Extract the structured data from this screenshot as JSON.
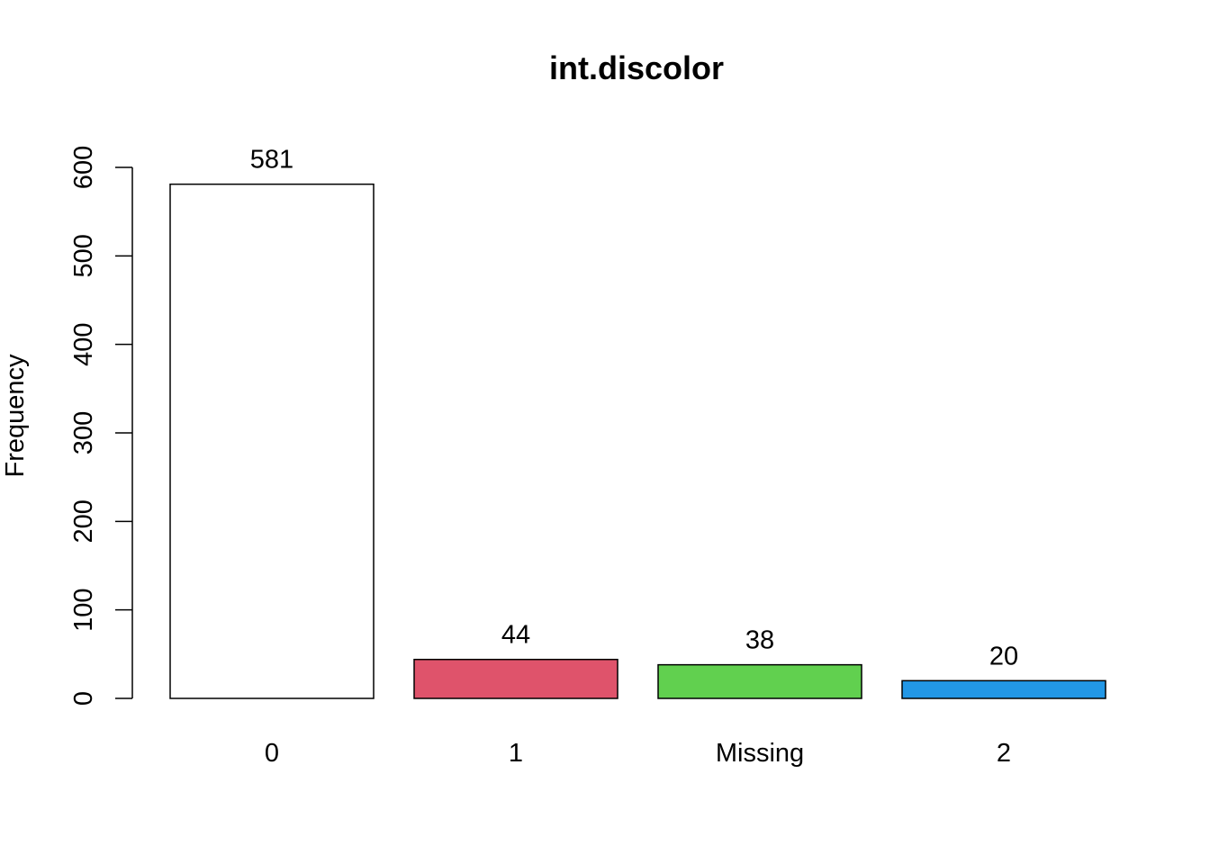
{
  "chart_data": {
    "type": "bar",
    "title": "int.discolor",
    "xlabel": "",
    "ylabel": "Frequency",
    "categories": [
      "0",
      "1",
      "Missing",
      "2"
    ],
    "values": [
      581,
      44,
      38,
      20
    ],
    "bar_labels": [
      "581",
      "44",
      "38",
      "20"
    ],
    "colors": [
      "#FFFFFF",
      "#DF536B",
      "#61D04F",
      "#2297E6"
    ],
    "ylim": [
      0,
      600
    ],
    "yticks": [
      0,
      100,
      200,
      300,
      400,
      500,
      600
    ],
    "ytick_labels": [
      "0",
      "100",
      "200",
      "300",
      "400",
      "500",
      "600"
    ],
    "grid": false,
    "legend": "none"
  }
}
